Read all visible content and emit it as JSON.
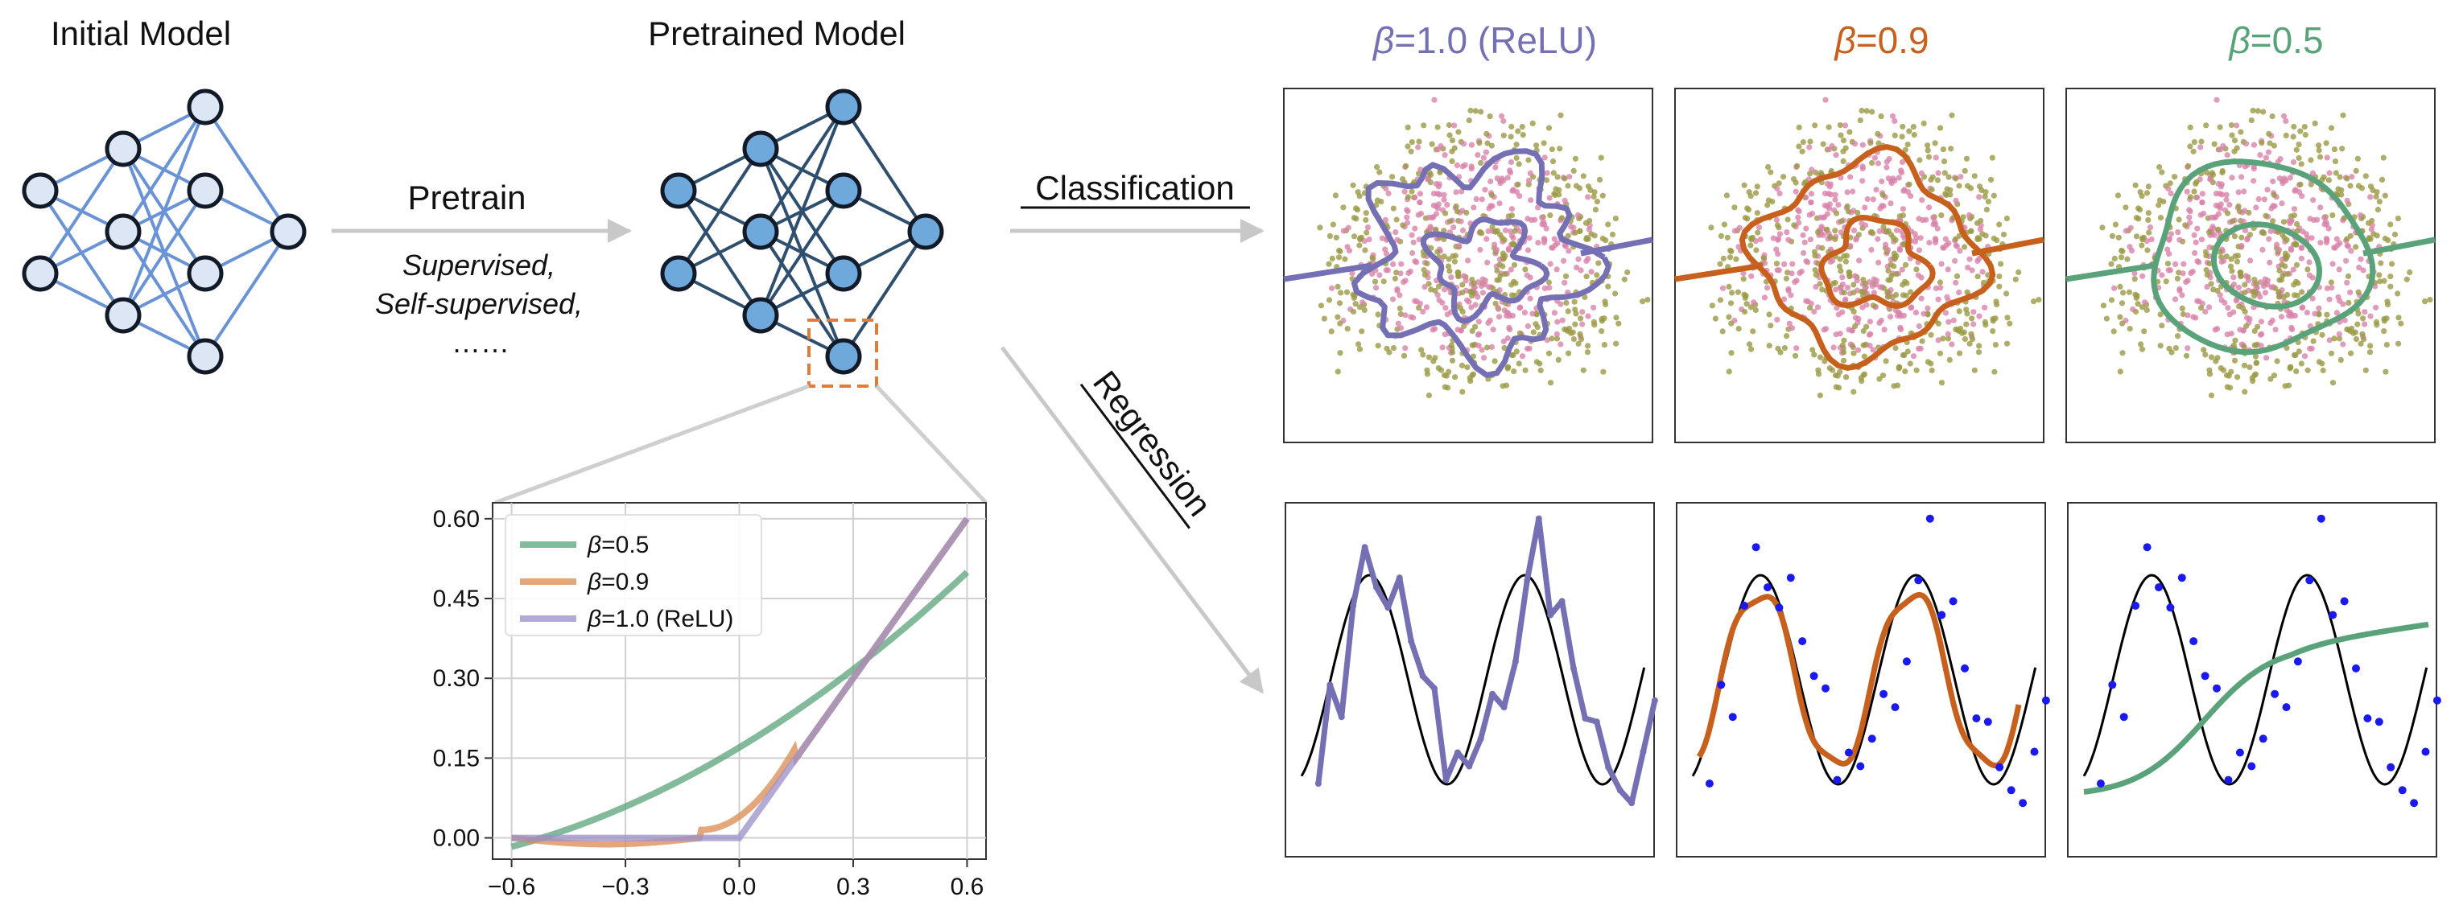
{
  "titles": {
    "initial_model": "Initial Model",
    "pretrained_model": "Pretrained Model"
  },
  "arrows": {
    "pretrain_label": "Pretrain",
    "pretrain_sub1": "Supervised,",
    "pretrain_sub2": "Self-supervised,",
    "pretrain_sub3": "……",
    "classification_label": "Classification",
    "regression_label": "Regression"
  },
  "columns": [
    {
      "beta_symbol": "β",
      "value": "=1.0 (ReLU)",
      "color": "#7570b3"
    },
    {
      "beta_symbol": "β",
      "value": "=0.9",
      "color": "#c6601c"
    },
    {
      "beta_symbol": "β",
      "value": "=0.5",
      "color": "#5aa37a"
    }
  ],
  "colors": {
    "initial_node_fill": "#dde6f4",
    "initial_edge": "#6a93d6",
    "pretrained_node_fill": "#6fa9dc",
    "pretrained_edge": "#2f4f6f",
    "node_stroke": "#111a26",
    "highlight_box": "#e07b39",
    "pink_points": "#d982aa",
    "olive_points": "#9a9a45",
    "reg_points": "#1a1aee",
    "arrow": "#c8c8c8"
  },
  "chart_data": {
    "type": "line",
    "xticks": [
      "−0.6",
      "−0.3",
      "0.0",
      "0.3",
      "0.6"
    ],
    "yticks": [
      "0.00",
      "0.15",
      "0.30",
      "0.45",
      "0.60"
    ],
    "xlim": [
      -0.65,
      0.65
    ],
    "ylim": [
      -0.04,
      0.63
    ],
    "grid": true,
    "legend_position": "top-left",
    "series": [
      {
        "name": "=0.5",
        "beta": 0.5,
        "color": "#5aa37a"
      },
      {
        "name": "=0.9",
        "beta": 0.9,
        "color": "#d98a4f"
      },
      {
        "name": "=1.0 (ReLU)",
        "beta": 1.0,
        "color": "#9a8fc8"
      }
    ]
  }
}
